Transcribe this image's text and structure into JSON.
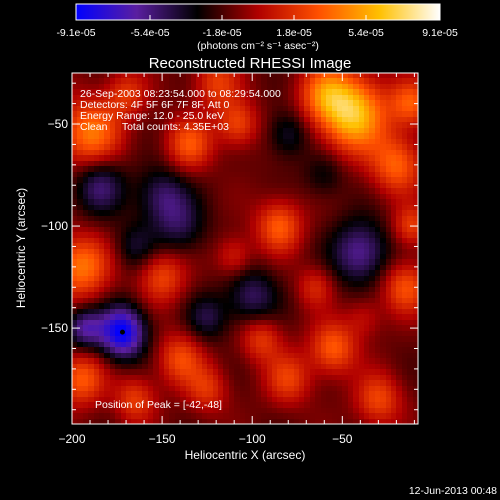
{
  "colorbar": {
    "tick_labels": [
      "-9.1e-05",
      "-5.4e-05",
      "-1.8e-05",
      "1.8e-05",
      "5.4e-05",
      "9.1e-05"
    ],
    "tick_values": [
      -9.1e-05,
      -5.4e-05,
      -1.8e-05,
      1.8e-05,
      5.4e-05,
      9.1e-05
    ],
    "range": [
      -9.1e-05,
      9.1e-05
    ],
    "unit_label": "(photons cm⁻² s⁻¹ asec⁻²)",
    "colors": [
      "#0000ff",
      "#5a1ea0",
      "#000000",
      "#b00000",
      "#ff5000",
      "#ffc000",
      "#ffffff"
    ]
  },
  "chart_data": {
    "type": "heatmap",
    "title": "Reconstructed RHESSI Image",
    "xlabel": "Heliocentric X (arcsec)",
    "ylabel": "Heliocentric Y (arcsec)",
    "xlim": [
      -200,
      -8
    ],
    "ylim": [
      -197,
      -25
    ],
    "x_ticks": [
      -200,
      -150,
      -100,
      -50
    ],
    "x_tick_labels": [
      "−200",
      "−150",
      "−100",
      "−50"
    ],
    "y_ticks": [
      -50,
      -100,
      -150
    ],
    "y_tick_labels": [
      "−50",
      "−100",
      "−150"
    ],
    "annotations": [
      "26-Sep-2003 08:23:54.000 to 08:29:54.000",
      "Detectors: 4F 5F 6F 7F 8F, Att 0",
      "Energy Range: 12.0 - 25.0 keV",
      "Clean     Total counts: 4.35E+03"
    ],
    "peak_label": "Position of Peak = [-42,-48]",
    "peak": [
      -42,
      -48
    ],
    "minimum_marker": [
      -172,
      -152
    ],
    "sources": [
      {
        "x": -44,
        "y": -45,
        "amp": 1.0,
        "sigma": 13
      },
      {
        "x": -20,
        "y": -70,
        "amp": 0.6,
        "sigma": 10
      },
      {
        "x": -60,
        "y": -35,
        "amp": 0.55,
        "sigma": 10
      },
      {
        "x": -12,
        "y": -40,
        "amp": 0.55,
        "sigma": 8
      },
      {
        "x": -12,
        "y": -100,
        "amp": 0.45,
        "sigma": 7
      },
      {
        "x": -15,
        "y": -130,
        "amp": 0.55,
        "sigma": 9
      },
      {
        "x": -55,
        "y": -160,
        "amp": 0.6,
        "sigma": 9
      },
      {
        "x": -80,
        "y": -175,
        "amp": 0.45,
        "sigma": 9
      },
      {
        "x": -30,
        "y": -185,
        "amp": 0.5,
        "sigma": 9
      },
      {
        "x": -95,
        "y": -155,
        "amp": 0.45,
        "sigma": 8
      },
      {
        "x": -140,
        "y": -165,
        "amp": 0.5,
        "sigma": 9
      },
      {
        "x": -125,
        "y": -180,
        "amp": 0.4,
        "sigma": 8
      },
      {
        "x": -150,
        "y": -125,
        "amp": 0.5,
        "sigma": 9
      },
      {
        "x": -195,
        "y": -120,
        "amp": 0.7,
        "sigma": 11
      },
      {
        "x": -190,
        "y": -55,
        "amp": 0.7,
        "sigma": 12
      },
      {
        "x": -195,
        "y": -175,
        "amp": 0.6,
        "sigma": 9
      },
      {
        "x": -165,
        "y": -185,
        "amp": 0.45,
        "sigma": 8
      },
      {
        "x": -135,
        "y": -60,
        "amp": 0.55,
        "sigma": 9
      },
      {
        "x": -108,
        "y": -50,
        "amp": 0.5,
        "sigma": 8
      },
      {
        "x": -85,
        "y": -100,
        "amp": 0.6,
        "sigma": 9
      },
      {
        "x": -110,
        "y": -115,
        "amp": 0.35,
        "sigma": 7
      },
      {
        "x": -120,
        "y": -30,
        "amp": 0.45,
        "sigma": 9
      },
      {
        "x": -170,
        "y": -35,
        "amp": 0.4,
        "sigma": 8
      },
      {
        "x": -65,
        "y": -130,
        "amp": 0.35,
        "sigma": 7
      },
      {
        "x": -38,
        "y": -145,
        "amp": 0.25,
        "sigma": 7
      },
      {
        "x": -172,
        "y": -152,
        "amp": -1.0,
        "sigma": 9
      },
      {
        "x": -193,
        "y": -150,
        "amp": -0.6,
        "sigma": 7
      },
      {
        "x": -40,
        "y": -113,
        "amp": -0.6,
        "sigma": 11
      },
      {
        "x": -185,
        "y": -80,
        "amp": -0.5,
        "sigma": 10
      },
      {
        "x": -150,
        "y": -85,
        "amp": -0.45,
        "sigma": 10
      },
      {
        "x": -100,
        "y": -135,
        "amp": -0.45,
        "sigma": 10
      },
      {
        "x": -140,
        "y": -100,
        "amp": -0.35,
        "sigma": 10
      },
      {
        "x": -80,
        "y": -55,
        "amp": -0.35,
        "sigma": 8
      },
      {
        "x": -125,
        "y": -145,
        "amp": -0.35,
        "sigma": 8
      },
      {
        "x": -60,
        "y": -75,
        "amp": -0.25,
        "sigma": 8
      },
      {
        "x": -165,
        "y": -110,
        "amp": -0.3,
        "sigma": 8
      }
    ]
  },
  "footer": {
    "timestamp": "12-Jun-2013 00:48"
  }
}
